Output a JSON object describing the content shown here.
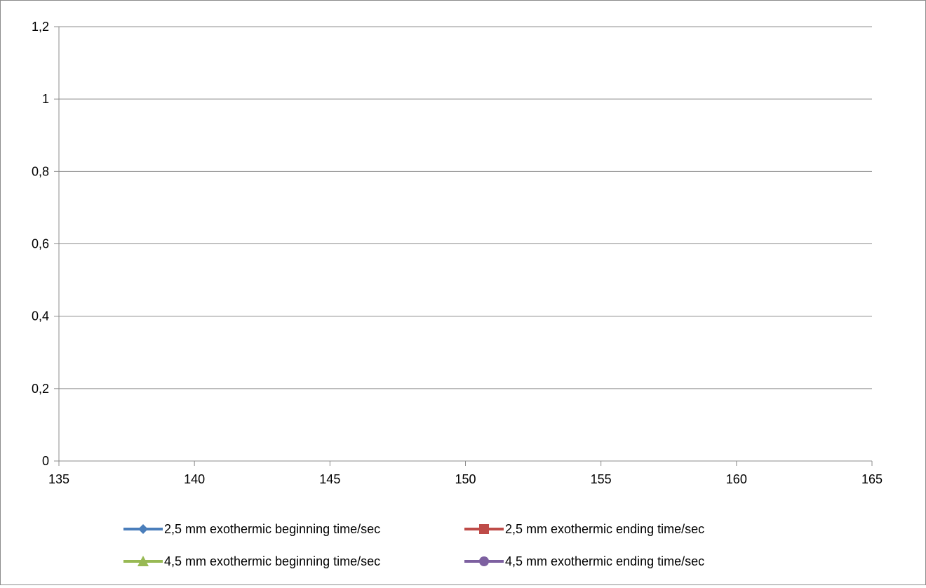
{
  "chart_data": {
    "type": "line",
    "title": "",
    "xlabel": "",
    "ylabel": "",
    "xlim": [
      135,
      165
    ],
    "ylim": [
      0,
      1.2
    ],
    "x_ticks": [
      135,
      140,
      145,
      150,
      155,
      160,
      165
    ],
    "x_tick_labels": [
      "135",
      "140",
      "145",
      "150",
      "155",
      "160",
      "165"
    ],
    "y_ticks": [
      0,
      0.2,
      0.4,
      0.6,
      0.8,
      1,
      1.2
    ],
    "y_tick_labels": [
      "0",
      "0,2",
      "0,4",
      "0,6",
      "0,8",
      "1",
      "1,2"
    ],
    "grid": "horizontal",
    "legend_position": "bottom",
    "series": [
      {
        "name": "2,5 mm exothermic beginning time/sec",
        "color": "#4a7ebb",
        "marker": "diamond",
        "points": []
      },
      {
        "name": "2,5 mm exothermic ending time/sec",
        "color": "#be4b48",
        "marker": "square",
        "points": []
      },
      {
        "name": "4,5 mm exothermic beginning time/sec",
        "color": "#98b954",
        "marker": "triangle",
        "points": []
      },
      {
        "name": "4,5 mm exothermic ending time/sec",
        "color": "#7d60a0",
        "marker": "circle",
        "points": []
      }
    ]
  }
}
